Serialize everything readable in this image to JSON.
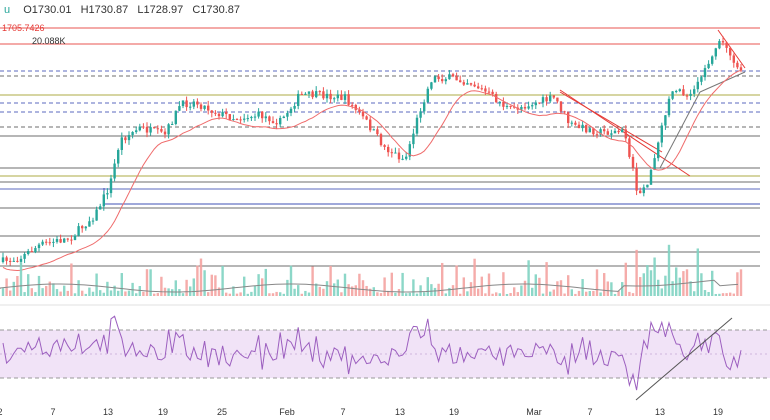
{
  "header": {
    "symbol_mark": "u",
    "open": "O1730.01",
    "high": "H1730.87",
    "low": "L1728.97",
    "close": "C1730.87"
  },
  "price_tag": "1705.7426",
  "volume_label": "20.088K",
  "colors": {
    "up": "#26a69a",
    "down": "#ef5350",
    "ma": "#ef6c6c",
    "rsi": "#9c5fbf",
    "rsi_band": "#f1e3f7",
    "resistance": "#e53935",
    "support_blue": "#3f51b5",
    "level_gray": "#555555",
    "level_olive": "#9e9d24",
    "volume_ma": "#888888"
  },
  "chart_data": {
    "type": "candlestick",
    "x_tick_labels": [
      "2",
      "7",
      "13",
      "19",
      "25",
      "Feb",
      "7",
      "13",
      "19",
      "Mar",
      "7",
      "13",
      "19"
    ],
    "panels": [
      "price",
      "volume",
      "rsi"
    ],
    "grid": false,
    "series": [
      {
        "name": "price"
      },
      {
        "name": "moving average"
      },
      {
        "name": "volume"
      },
      {
        "name": "RSI"
      }
    ]
  }
}
